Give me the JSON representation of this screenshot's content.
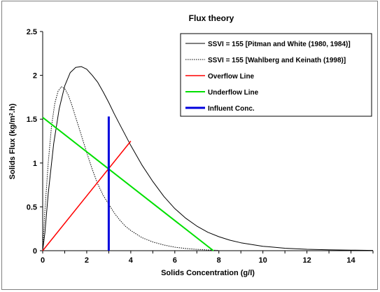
{
  "chart_data": {
    "type": "line",
    "title": "Flux theory",
    "xlabel": "Solids Concentration (g/l)",
    "ylabel_parts": [
      "Solids  Flux (kg/m",
      "2",
      ".h)"
    ],
    "xlim": [
      0,
      15
    ],
    "ylim": [
      0,
      2.5
    ],
    "xticks": [
      0,
      2,
      4,
      6,
      8,
      10,
      12,
      14
    ],
    "yticks": [
      0,
      0.5,
      1,
      1.5,
      2,
      2.5
    ],
    "grid": false,
    "legend_placement": "top-right",
    "series": [
      {
        "name": "SSVI = 155 [Pitman and White (1980, 1984)]",
        "color": "#000000",
        "style": "solid",
        "width": 1,
        "x": [
          0,
          0.1,
          0.25,
          0.5,
          0.75,
          1,
          1.25,
          1.5,
          1.75,
          2,
          2.25,
          2.5,
          2.75,
          3,
          3.25,
          3.5,
          3.75,
          4,
          4.5,
          5,
          5.5,
          6,
          6.5,
          7,
          7.5,
          8,
          8.5,
          9,
          10,
          11,
          12,
          13,
          14,
          15
        ],
        "y": [
          0,
          0.2,
          0.65,
          1.22,
          1.62,
          1.88,
          2.03,
          2.09,
          2.1,
          2.07,
          2.0,
          1.92,
          1.81,
          1.69,
          1.56,
          1.44,
          1.32,
          1.2,
          0.98,
          0.79,
          0.62,
          0.48,
          0.37,
          0.28,
          0.21,
          0.16,
          0.12,
          0.09,
          0.05,
          0.028,
          0.016,
          0.01,
          0.006,
          0.003
        ]
      },
      {
        "name": "SSVI = 155 [Wahlberg and Keinath (1998)]",
        "color": "#000000",
        "style": "dotted",
        "width": 1,
        "x": [
          0,
          0.1,
          0.25,
          0.4,
          0.55,
          0.7,
          0.85,
          1,
          1.15,
          1.3,
          1.5,
          1.75,
          2,
          2.25,
          2.5,
          2.75,
          3,
          3.25,
          3.5,
          3.75,
          4,
          4.5,
          5,
          5.5,
          6,
          6.5,
          7,
          7.5,
          8
        ],
        "y": [
          0,
          0.45,
          1.0,
          1.42,
          1.68,
          1.82,
          1.87,
          1.85,
          1.78,
          1.68,
          1.52,
          1.32,
          1.12,
          0.93,
          0.76,
          0.63,
          0.53,
          0.43,
          0.35,
          0.28,
          0.23,
          0.15,
          0.1,
          0.065,
          0.04,
          0.025,
          0.015,
          0.008,
          0.004
        ]
      },
      {
        "name": "Overflow Line",
        "color": "#ff0000",
        "style": "solid",
        "width": 1.5,
        "x": [
          0,
          4
        ],
        "y": [
          0,
          1.25
        ]
      },
      {
        "name": "Underflow Line",
        "color": "#00e000",
        "style": "solid",
        "width": 2,
        "x": [
          0,
          7.75
        ],
        "y": [
          1.52,
          0
        ]
      },
      {
        "name": "Influent Conc.",
        "color": "#0000dd",
        "style": "solid",
        "width": 3,
        "x": [
          3,
          3
        ],
        "y": [
          0,
          1.53
        ]
      }
    ]
  }
}
